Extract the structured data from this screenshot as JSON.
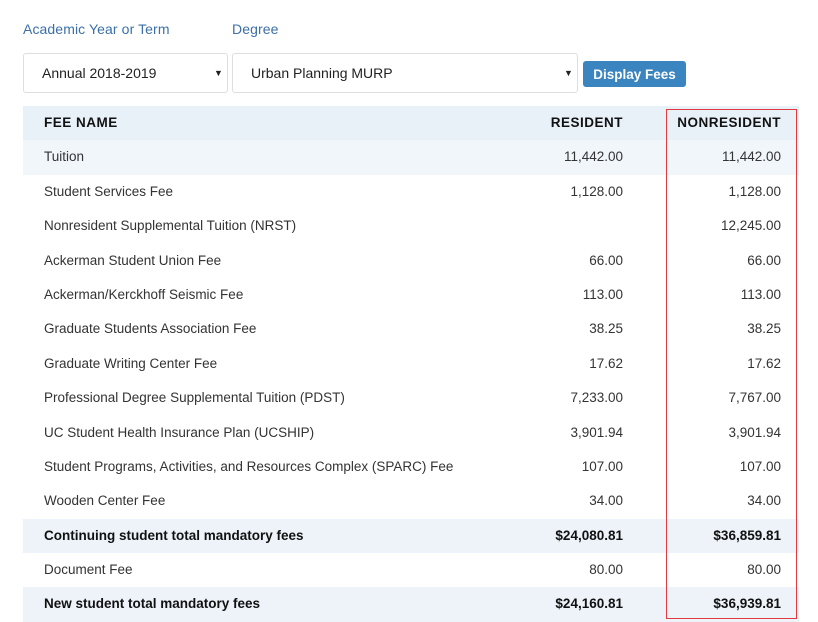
{
  "filters": {
    "term_label": "Academic Year or Term",
    "degree_label": "Degree",
    "term_value": "Annual 2018-2019",
    "degree_value": "Urban Planning MURP",
    "button_label": "Display Fees"
  },
  "table": {
    "headers": {
      "name": "FEE NAME",
      "resident": "RESIDENT",
      "nonresident": "NONRESIDENT"
    },
    "rows": [
      {
        "name": "Tuition",
        "resident": "11,442.00",
        "nonresident": "11,442.00"
      },
      {
        "name": "Student Services Fee",
        "resident": "1,128.00",
        "nonresident": "1,128.00"
      },
      {
        "name": "Nonresident Supplemental Tuition (NRST)",
        "resident": "",
        "nonresident": "12,245.00"
      },
      {
        "name": "Ackerman Student Union Fee",
        "resident": "66.00",
        "nonresident": "66.00"
      },
      {
        "name": "Ackerman/Kerckhoff Seismic Fee",
        "resident": "113.00",
        "nonresident": "113.00"
      },
      {
        "name": "Graduate Students Association Fee",
        "resident": "38.25",
        "nonresident": "38.25"
      },
      {
        "name": "Graduate Writing Center Fee",
        "resident": "17.62",
        "nonresident": "17.62"
      },
      {
        "name": "Professional Degree Supplemental Tuition (PDST)",
        "resident": "7,233.00",
        "nonresident": "7,767.00"
      },
      {
        "name": "UC Student Health Insurance Plan (UCSHIP)",
        "resident": "3,901.94",
        "nonresident": "3,901.94"
      },
      {
        "name": "Student Programs, Activities, and Resources Complex (SPARC) Fee",
        "resident": "107.00",
        "nonresident": "107.00"
      },
      {
        "name": "Wooden Center Fee",
        "resident": "34.00",
        "nonresident": "34.00"
      },
      {
        "name": "Continuing student total mandatory fees",
        "resident": "$24,080.81",
        "nonresident": "$36,859.81"
      },
      {
        "name": "Document Fee",
        "resident": "80.00",
        "nonresident": "80.00"
      },
      {
        "name": "New student total mandatory fees",
        "resident": "$24,160.81",
        "nonresident": "$36,939.81"
      }
    ]
  },
  "colors": {
    "accent": "#3a84c0",
    "label_blue": "#3b6fa8",
    "header_bg": "#e9f1f8",
    "highlight_border": "#e0393e"
  }
}
